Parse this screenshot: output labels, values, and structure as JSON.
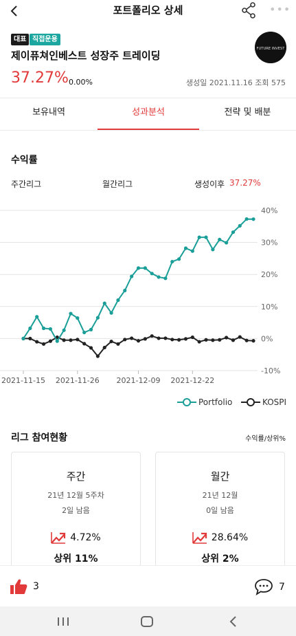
{
  "header": {
    "title": "포트폴리오 상세"
  },
  "portfolio": {
    "badge_rep": "대표",
    "badge_direct": "직접운용",
    "name": "제이퓨쳐인베스트 성장주 트레이딩",
    "logo_text": "FUTURE INVEST",
    "total_return": "37.27%",
    "daily_change": "0.00%",
    "created_label": "생성일",
    "created_date": "2021.11.16",
    "views_label": "조회",
    "views": "575"
  },
  "tabs": [
    {
      "label": "보유내역",
      "active": false
    },
    {
      "label": "성과분석",
      "active": true
    },
    {
      "label": "전략 및 배분",
      "active": false
    }
  ],
  "returns": {
    "title": "수익률",
    "weekly_label": "주간리그",
    "monthly_label": "월간리그",
    "since_label": "생성이후",
    "since_value": "37.27%"
  },
  "chart_data": {
    "type": "line",
    "x_ticks": [
      "2021-11-15",
      "2021-11-26",
      "2021-12-09",
      "2021-12-22"
    ],
    "y_ticks": [
      "40%",
      "30%",
      "20%",
      "10%",
      "0%",
      "-10%"
    ],
    "ylim": [
      -10,
      40
    ],
    "grid": true,
    "legend": "bottom-right",
    "colors": {
      "portfolio": "#1a9e98",
      "kospi": "#222222"
    },
    "series": [
      {
        "name": "Portfolio",
        "values": [
          0,
          3.2,
          6.8,
          3.2,
          3.0,
          -0.8,
          2.6,
          7.8,
          6.4,
          1.9,
          2.8,
          6.5,
          11.0,
          8.0,
          12.0,
          15.0,
          19.4,
          22.0,
          22.0,
          20.3,
          19.2,
          18.8,
          24.0,
          24.8,
          28.2,
          27.3,
          31.6,
          31.6,
          27.8,
          30.9,
          29.9,
          33.2,
          35.2,
          37.3,
          37.27
        ]
      },
      {
        "name": "KOSPI",
        "values": [
          0,
          0,
          -1.0,
          -1.7,
          -0.8,
          0.4,
          -0.5,
          -0.5,
          -0.3,
          -1.6,
          -2.9,
          -5.5,
          -2.8,
          -0.9,
          -1.7,
          -0.3,
          0.1,
          -0.7,
          -0.1,
          0.8,
          0.1,
          0.1,
          -0.3,
          -0.4,
          -0.1,
          0.4,
          -1.0,
          -0.4,
          -0.5,
          -0.4,
          0.3,
          -0.5,
          0.5,
          -0.6,
          -0.7
        ]
      }
    ]
  },
  "legend": {
    "portfolio_label": "Portfolio",
    "kospi_label": "KOSPI"
  },
  "league": {
    "title": "리그 참여현황",
    "sort_label": "수익률/상위%",
    "cards": [
      {
        "title": "주간",
        "period": "21년 12월 5주차",
        "remaining": "2일 남음",
        "return": "4.72%",
        "rank": "상위 11%"
      },
      {
        "title": "월간",
        "period": "21년 12월",
        "remaining": "0일 남음",
        "return": "28.64%",
        "rank": "상위 2%"
      }
    ]
  },
  "actions": {
    "likes": "3",
    "comments": "7"
  },
  "icons": {
    "back": "back-arrow-icon",
    "share": "share-icon",
    "more": "more-icon",
    "like": "thumbs-up-icon",
    "comment": "comment-icon",
    "trend": "trending-up-icon"
  }
}
